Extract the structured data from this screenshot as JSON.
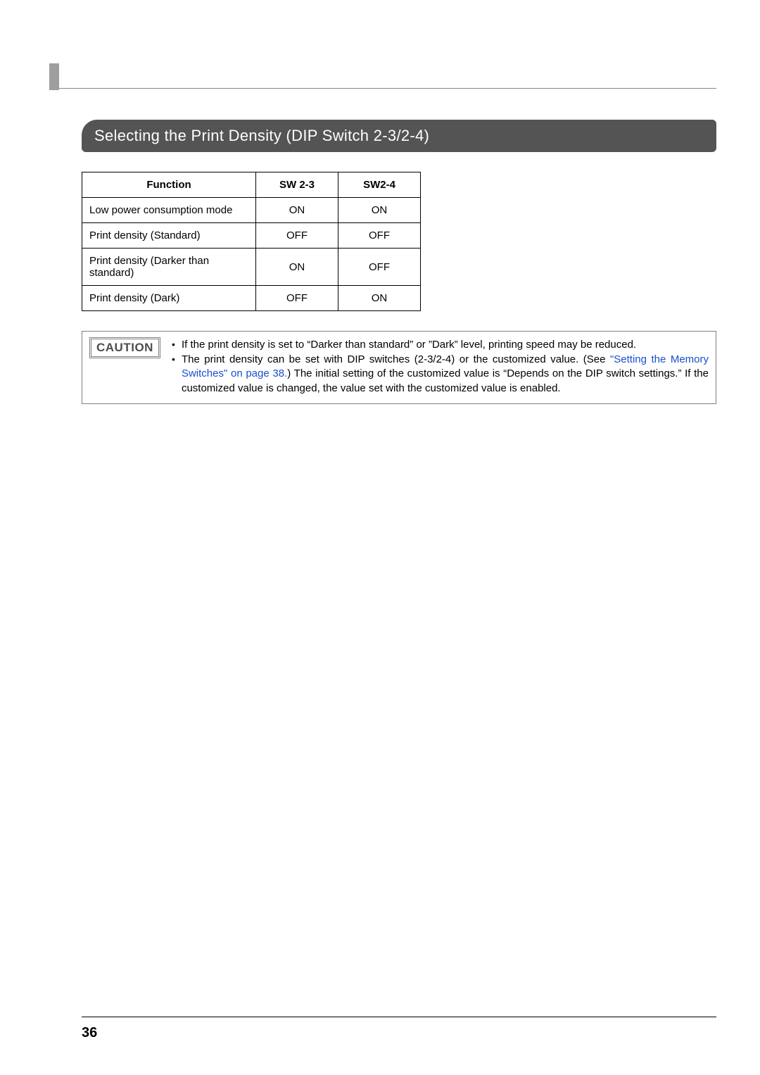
{
  "section": {
    "title": "Selecting the Print Density (DIP Switch 2-3/2-4)"
  },
  "table": {
    "headers": {
      "function": "Function",
      "sw23": "SW 2-3",
      "sw24": "SW2-4"
    },
    "rows": [
      {
        "function": "Low power consumption mode",
        "sw23": "ON",
        "sw24": "ON"
      },
      {
        "function": "Print density (Standard)",
        "sw23": "OFF",
        "sw24": "OFF"
      },
      {
        "function": "Print density (Darker than standard)",
        "sw23": "ON",
        "sw24": "OFF"
      },
      {
        "function": "Print density (Dark)",
        "sw23": "OFF",
        "sw24": "ON"
      }
    ]
  },
  "caution": {
    "label": "CAUTION",
    "items": [
      {
        "text": "If the print density is set to “Darker than standard” or ”Dark” level, printing speed may be reduced."
      },
      {
        "prefix": "The print density can be set with DIP switches (2-3/2-4) or the customized value. (See ",
        "link": "\"Setting the Memory Switches\" on page 38.",
        "suffix": ") The initial setting of the customized value is “Depends on the DIP switch settings.” If the customized value is changed, the value set with the customized value is enabled."
      }
    ]
  },
  "page": {
    "number": "36"
  }
}
